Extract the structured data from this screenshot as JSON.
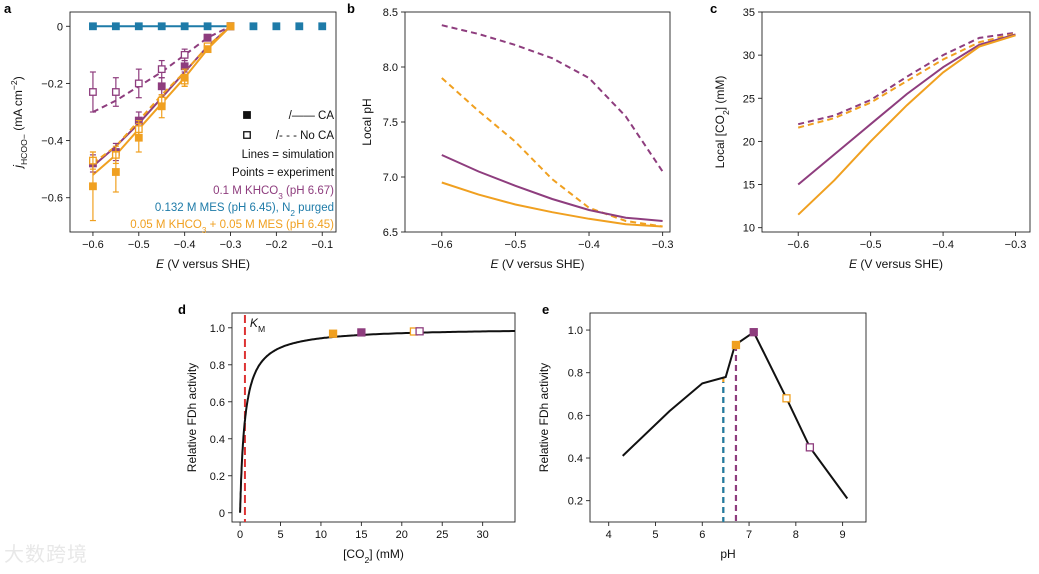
{
  "colors": {
    "purple": "#8e3d7e",
    "blue": "#1e7ba8",
    "orange": "#f0a020",
    "black": "#111111",
    "red": "#dd3333"
  },
  "watermark": "大数跨境",
  "chart_data": [
    {
      "id": "a",
      "panel_label": "a",
      "type": "line",
      "xlabel": "E (V versus SHE)",
      "ylabel": "j HCOO− (mA cm−2)",
      "xlim": [
        -0.65,
        -0.07
      ],
      "ylim": [
        -0.72,
        0.05
      ],
      "xticks": [
        -0.6,
        -0.5,
        -0.4,
        -0.3,
        -0.2,
        -0.1
      ],
      "xtick_labels": [
        "−0.6",
        "−0.5",
        "−0.4",
        "−0.3",
        "−0.2",
        "−0.1"
      ],
      "yticks": [
        0,
        -0.2,
        -0.4,
        -0.6
      ],
      "ytick_labels": [
        "0",
        "−0.2",
        "−0.4",
        "−0.6"
      ],
      "lines": [
        {
          "color": "purple",
          "dash": false,
          "x": [
            -0.6,
            -0.55,
            -0.5,
            -0.45,
            -0.4,
            -0.35,
            -0.3
          ],
          "y": [
            -0.49,
            -0.42,
            -0.34,
            -0.25,
            -0.16,
            -0.07,
            0
          ]
        },
        {
          "color": "purple",
          "dash": true,
          "x": [
            -0.6,
            -0.55,
            -0.5,
            -0.45,
            -0.4,
            -0.35,
            -0.3
          ],
          "y": [
            -0.3,
            -0.26,
            -0.21,
            -0.16,
            -0.1,
            -0.04,
            0
          ]
        },
        {
          "color": "orange",
          "dash": false,
          "x": [
            -0.6,
            -0.55,
            -0.5,
            -0.45,
            -0.4,
            -0.35,
            -0.3
          ],
          "y": [
            -0.52,
            -0.45,
            -0.36,
            -0.27,
            -0.18,
            -0.08,
            0
          ]
        },
        {
          "color": "orange",
          "dash": true,
          "x": [
            -0.6,
            -0.55,
            -0.5,
            -0.45,
            -0.4,
            -0.35,
            -0.3
          ],
          "y": [
            -0.48,
            -0.42,
            -0.33,
            -0.24,
            -0.16,
            -0.07,
            0
          ]
        },
        {
          "color": "blue",
          "dash": false,
          "x": [
            -0.6,
            -0.3
          ],
          "y": [
            0,
            0
          ]
        }
      ],
      "points": [
        {
          "color": "blue",
          "filled": true,
          "x": [
            -0.6,
            -0.55,
            -0.5,
            -0.45,
            -0.4,
            -0.35,
            -0.3,
            -0.25,
            -0.2,
            -0.15,
            -0.1
          ],
          "y": [
            0,
            0,
            0,
            0,
            0,
            0,
            0,
            0,
            0,
            0,
            0
          ],
          "err": [
            0,
            0,
            0,
            0,
            0,
            0,
            0,
            0,
            0,
            0,
            0
          ]
        },
        {
          "color": "purple",
          "filled": false,
          "x": [
            -0.6,
            -0.55,
            -0.5,
            -0.45,
            -0.4,
            -0.35,
            -0.3
          ],
          "y": [
            -0.23,
            -0.23,
            -0.2,
            -0.15,
            -0.1,
            -0.04,
            0
          ],
          "err": [
            0.07,
            0.05,
            0.05,
            0.03,
            0.02,
            0.01,
            0
          ]
        },
        {
          "color": "purple",
          "filled": true,
          "x": [
            -0.6,
            -0.55,
            -0.5,
            -0.45,
            -0.4,
            -0.35,
            -0.3
          ],
          "y": [
            -0.48,
            -0.44,
            -0.33,
            -0.21,
            -0.14,
            -0.04,
            0
          ],
          "err": [
            0.03,
            0.03,
            0.03,
            0.03,
            0.02,
            0.01,
            0
          ]
        },
        {
          "color": "orange",
          "filled": false,
          "x": [
            -0.6,
            -0.55,
            -0.5,
            -0.45,
            -0.4,
            -0.35,
            -0.3
          ],
          "y": [
            -0.47,
            -0.45,
            -0.36,
            -0.26,
            -0.19,
            -0.07,
            0
          ],
          "err": [
            0.03,
            0.03,
            0.03,
            0.02,
            0.02,
            0.01,
            0
          ]
        },
        {
          "color": "orange",
          "filled": true,
          "x": [
            -0.6,
            -0.55,
            -0.5,
            -0.45,
            -0.4,
            -0.35,
            -0.3
          ],
          "y": [
            -0.56,
            -0.51,
            -0.39,
            -0.28,
            -0.18,
            -0.08,
            0
          ],
          "err": [
            0.12,
            0.07,
            0.05,
            0.04,
            0.03,
            0.01,
            0
          ]
        }
      ],
      "legend": {
        "ca_label": "/—— CA",
        "noca_label": "/- - - No CA",
        "lines_label": "Lines = simulation",
        "points_label": "Points = experiment",
        "series": [
          {
            "name": "0.1 M KHCO3 (pH 6.67)",
            "color": "purple"
          },
          {
            "name": "0.132 M MES (pH 6.45), N2 purged",
            "color": "blue"
          },
          {
            "name": "0.05 M KHCO3 + 0.05 M MES (pH 6.45)",
            "color": "orange"
          }
        ]
      }
    },
    {
      "id": "b",
      "panel_label": "b",
      "type": "line",
      "xlabel": "E (V versus SHE)",
      "ylabel": "Local pH",
      "xlim": [
        -0.65,
        -0.29
      ],
      "ylim": [
        6.5,
        8.5
      ],
      "xticks": [
        -0.6,
        -0.5,
        -0.4,
        -0.3
      ],
      "xtick_labels": [
        "−0.6",
        "−0.5",
        "−0.4",
        "−0.3"
      ],
      "yticks": [
        6.5,
        7.0,
        7.5,
        8.0,
        8.5
      ],
      "ytick_labels": [
        "6.5",
        "7.0",
        "7.5",
        "8.0",
        "8.5"
      ],
      "lines": [
        {
          "color": "purple",
          "dash": true,
          "x": [
            -0.6,
            -0.55,
            -0.5,
            -0.45,
            -0.4,
            -0.35,
            -0.3
          ],
          "y": [
            8.38,
            8.3,
            8.2,
            8.08,
            7.9,
            7.55,
            7.05
          ]
        },
        {
          "color": "orange",
          "dash": true,
          "x": [
            -0.6,
            -0.55,
            -0.5,
            -0.45,
            -0.4,
            -0.35,
            -0.3
          ],
          "y": [
            7.9,
            7.6,
            7.32,
            6.98,
            6.72,
            6.6,
            6.55
          ]
        },
        {
          "color": "purple",
          "dash": false,
          "x": [
            -0.6,
            -0.55,
            -0.5,
            -0.45,
            -0.4,
            -0.35,
            -0.3
          ],
          "y": [
            7.2,
            7.05,
            6.92,
            6.8,
            6.7,
            6.63,
            6.6
          ]
        },
        {
          "color": "orange",
          "dash": false,
          "x": [
            -0.6,
            -0.55,
            -0.5,
            -0.45,
            -0.4,
            -0.35,
            -0.3
          ],
          "y": [
            6.95,
            6.84,
            6.75,
            6.68,
            6.62,
            6.57,
            6.55
          ]
        }
      ]
    },
    {
      "id": "c",
      "panel_label": "c",
      "type": "line",
      "xlabel": "E (V versus SHE)",
      "ylabel": "Local [CO2] (mM)",
      "xlim": [
        -0.65,
        -0.28
      ],
      "ylim": [
        9.5,
        35
      ],
      "xticks": [
        -0.6,
        -0.5,
        -0.4,
        -0.3
      ],
      "xtick_labels": [
        "−0.6",
        "−0.5",
        "−0.4",
        "−0.3"
      ],
      "yticks": [
        10,
        15,
        20,
        25,
        30,
        35
      ],
      "ytick_labels": [
        "10",
        "15",
        "20",
        "25",
        "30",
        "35"
      ],
      "lines": [
        {
          "color": "purple",
          "dash": true,
          "x": [
            -0.6,
            -0.55,
            -0.5,
            -0.45,
            -0.4,
            -0.35,
            -0.3
          ],
          "y": [
            22,
            23,
            24.8,
            27.5,
            30,
            32,
            32.6
          ]
        },
        {
          "color": "orange",
          "dash": true,
          "x": [
            -0.6,
            -0.55,
            -0.5,
            -0.45,
            -0.4,
            -0.35,
            -0.3
          ],
          "y": [
            21.6,
            22.7,
            24.5,
            27,
            29.5,
            31.5,
            32.5
          ]
        },
        {
          "color": "purple",
          "dash": false,
          "x": [
            -0.6,
            -0.55,
            -0.5,
            -0.45,
            -0.4,
            -0.35,
            -0.3
          ],
          "y": [
            15,
            18.5,
            22,
            25.5,
            28.6,
            31.2,
            32.4
          ]
        },
        {
          "color": "orange",
          "dash": false,
          "x": [
            -0.6,
            -0.55,
            -0.5,
            -0.45,
            -0.4,
            -0.35,
            -0.3
          ],
          "y": [
            11.5,
            15.5,
            20,
            24.2,
            28,
            31,
            32.3
          ]
        }
      ]
    },
    {
      "id": "d",
      "panel_label": "d",
      "type": "line",
      "xlabel": "[CO2] (mM)",
      "ylabel": "Relative FDh activity",
      "xlim": [
        -1,
        34
      ],
      "ylim": [
        -0.05,
        1.08
      ],
      "xticks": [
        0,
        5,
        10,
        15,
        20,
        25,
        30
      ],
      "xtick_labels": [
        "0",
        "5",
        "10",
        "15",
        "20",
        "25",
        "30"
      ],
      "yticks": [
        0,
        0.2,
        0.4,
        0.6,
        0.8,
        1.0
      ],
      "ytick_labels": [
        "0",
        "0.2",
        "0.4",
        "0.6",
        "0.8",
        "1.0"
      ],
      "km": {
        "x": 0.6,
        "label": "KM"
      },
      "curve": {
        "vmax": 1.0,
        "km": 0.6,
        "x_start": 0,
        "x_end": 34
      },
      "points": [
        {
          "x": 11.5,
          "y": 0.968,
          "color": "orange",
          "filled": true
        },
        {
          "x": 15,
          "y": 0.975,
          "color": "purple",
          "filled": true
        },
        {
          "x": 21.5,
          "y": 0.98,
          "color": "orange",
          "filled": false
        },
        {
          "x": 22.2,
          "y": 0.981,
          "color": "purple",
          "filled": false
        }
      ]
    },
    {
      "id": "e",
      "panel_label": "e",
      "type": "line",
      "xlabel": "pH",
      "ylabel": "Relative FDh activity",
      "xlim": [
        3.6,
        9.5
      ],
      "ylim": [
        0.1,
        1.08
      ],
      "xticks": [
        4,
        5,
        6,
        7,
        8,
        9
      ],
      "xtick_labels": [
        "4",
        "5",
        "6",
        "7",
        "8",
        "9"
      ],
      "yticks": [
        0.2,
        0.4,
        0.6,
        0.8,
        1.0
      ],
      "ytick_labels": [
        "0.2",
        "0.4",
        "0.6",
        "0.8",
        "1.0"
      ],
      "x": [
        4.3,
        5.3,
        6.0,
        6.5,
        6.7,
        7.1,
        7.8,
        8.3,
        9.1
      ],
      "y": [
        0.41,
        0.62,
        0.75,
        0.78,
        0.93,
        0.99,
        0.68,
        0.45,
        0.21
      ],
      "vlines": [
        {
          "x": 6.45,
          "colors": [
            "orange",
            "blue"
          ]
        },
        {
          "x": 6.72,
          "colors": [
            "purple"
          ]
        }
      ],
      "points": [
        {
          "x": 6.72,
          "y": 0.93,
          "color": "orange",
          "filled": true
        },
        {
          "x": 7.1,
          "y": 0.99,
          "color": "purple",
          "filled": true
        },
        {
          "x": 7.8,
          "y": 0.68,
          "color": "orange",
          "filled": false
        },
        {
          "x": 8.3,
          "y": 0.45,
          "color": "purple",
          "filled": false
        }
      ]
    }
  ]
}
